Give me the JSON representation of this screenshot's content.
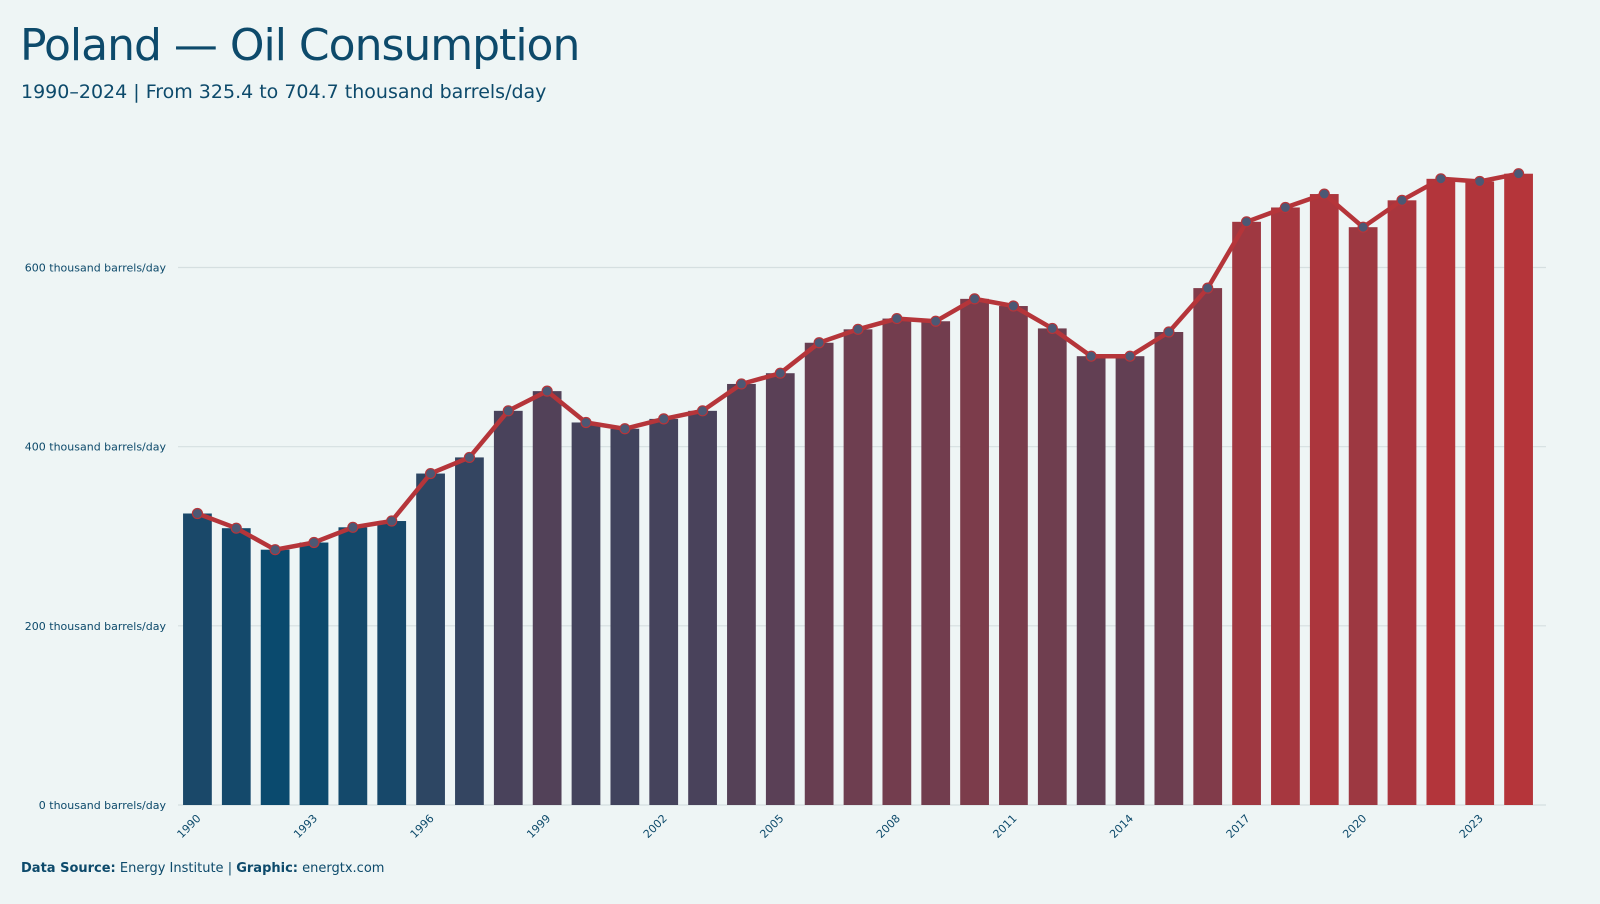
{
  "header": {
    "title": "Poland — Oil Consumption",
    "subtitle": "1990–2024 | From 325.4 to 704.7 thousand barrels/day"
  },
  "footer": {
    "source_label": "Data Source:",
    "source_value": "Energy Institute",
    "separator": "|",
    "graphic_label": "Graphic:",
    "graphic_value": "energtx.com"
  },
  "colors": {
    "background": "#eef5f5",
    "text": "#0d4a6b",
    "line": "#b5353a",
    "bar_low": "#0a4a6e",
    "bar_high": "#b5353a",
    "grid": "#d5dfe0"
  },
  "chart_data": {
    "type": "bar",
    "x": [
      1990,
      1991,
      1992,
      1993,
      1994,
      1995,
      1996,
      1997,
      1998,
      1999,
      2000,
      2001,
      2002,
      2003,
      2004,
      2005,
      2006,
      2007,
      2008,
      2009,
      2010,
      2011,
      2012,
      2013,
      2014,
      2015,
      2016,
      2017,
      2018,
      2019,
      2020,
      2021,
      2022,
      2023,
      2024
    ],
    "values": [
      325.4,
      309,
      285,
      293,
      310,
      317,
      370,
      388,
      440,
      462,
      427,
      420,
      431,
      440,
      470,
      482,
      516,
      531,
      543,
      540,
      565,
      557,
      532,
      501,
      501,
      528,
      577,
      651,
      667,
      682,
      645,
      675,
      699,
      696,
      704.7
    ],
    "x_tick_labels": [
      "1990",
      "1993",
      "1996",
      "1999",
      "2002",
      "2005",
      "2008",
      "2011",
      "2014",
      "2017",
      "2020",
      "2023"
    ],
    "y_ticks": [
      {
        "value": 0,
        "label": "0 thousand barrels/day"
      },
      {
        "value": 200,
        "label": "200 thousand barrels/day"
      },
      {
        "value": 400,
        "label": "400 thousand barrels/day"
      },
      {
        "value": 600,
        "label": "600 thousand barrels/day"
      }
    ],
    "ylim": [
      0,
      720
    ],
    "overlay": "line-with-markers",
    "grid": true,
    "legend": "none"
  }
}
